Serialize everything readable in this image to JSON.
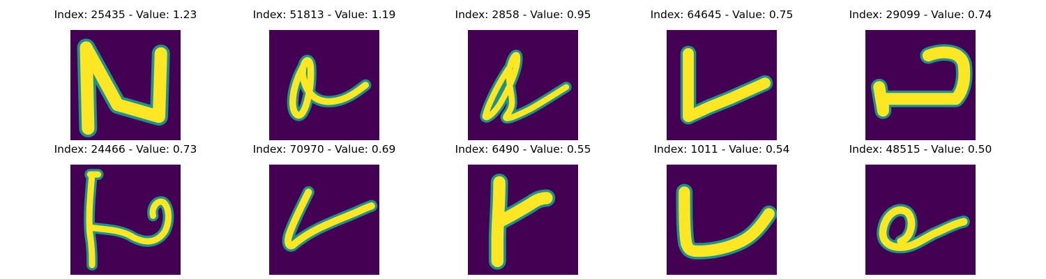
{
  "palette": {
    "background": "#440154",
    "edge": "#21918c",
    "stroke": "#fde725"
  },
  "samples": [
    {
      "title": "Index: 25435 - Value: 1.23",
      "index": 25435,
      "value": 1.23
    },
    {
      "title": "Index: 51813 - Value: 1.19",
      "index": 51813,
      "value": 1.19
    },
    {
      "title": "Index: 2858 - Value: 0.95",
      "index": 2858,
      "value": 0.95
    },
    {
      "title": "Index: 64645 - Value: 0.75",
      "index": 64645,
      "value": 0.75
    },
    {
      "title": "Index: 29099 - Value: 0.74",
      "index": 29099,
      "value": 0.74
    },
    {
      "title": "Index: 24466 - Value: 0.73",
      "index": 24466,
      "value": 0.73
    },
    {
      "title": "Index: 70970 - Value: 0.69",
      "index": 70970,
      "value": 0.69
    },
    {
      "title": "Index: 6490 - Value: 0.55",
      "index": 6490,
      "value": 0.55
    },
    {
      "title": "Index: 1011 - Value: 0.54",
      "index": 1011,
      "value": 0.54
    },
    {
      "title": "Index: 48515 - Value: 0.50",
      "index": 48515,
      "value": 0.5
    }
  ]
}
